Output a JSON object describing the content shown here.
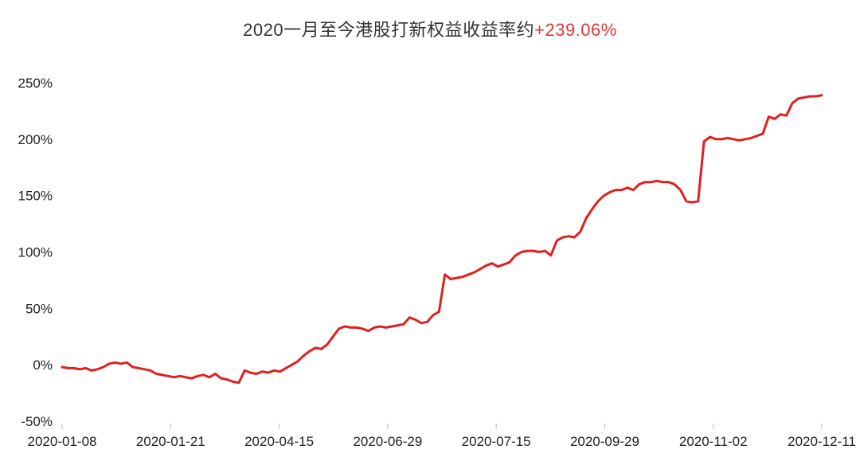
{
  "title": {
    "text": "2020一月至今港股打新权益收益率约",
    "highlight": "+239.06%"
  },
  "colors": {
    "line": "#e01f1f",
    "highlight": "#e23939",
    "title_text": "#333333",
    "axis_text": "#222222",
    "tick": "#bbbbbb"
  },
  "chart_data": {
    "type": "line",
    "title": "2020一月至今港股打新权益收益率约+239.06%",
    "xlabel": "",
    "ylabel": "",
    "ylim": [
      -50,
      250
    ],
    "yticks": [
      -50,
      0,
      50,
      100,
      150,
      200,
      250
    ],
    "ytick_suffix": "%",
    "xticklabels": [
      "2020-01-08",
      "2020-01-21",
      "2020-04-15",
      "2020-06-29",
      "2020-07-15",
      "2020-09-29",
      "2020-11-02",
      "2020-12-11"
    ],
    "grid": false,
    "legend": "none",
    "series_name": "港股打新权益收益率",
    "final_value": 239.06,
    "values": [
      -2,
      -3,
      -3,
      -4,
      -3,
      -5,
      -4,
      -2,
      1,
      2,
      1,
      2,
      -2,
      -3,
      -4,
      -5,
      -8,
      -9,
      -10,
      -11,
      -10,
      -11,
      -12,
      -10,
      -9,
      -11,
      -8,
      -12,
      -13,
      -15,
      -16,
      -5,
      -7,
      -8,
      -6,
      -7,
      -5,
      -6,
      -3,
      0,
      3,
      8,
      12,
      15,
      14,
      18,
      25,
      32,
      34,
      33,
      33,
      32,
      30,
      33,
      34,
      33,
      34,
      35,
      36,
      42,
      40,
      37,
      38,
      44,
      47,
      80,
      76,
      77,
      78,
      80,
      82,
      85,
      88,
      90,
      87,
      89,
      91,
      97,
      100,
      101,
      101,
      100,
      101,
      97,
      110,
      113,
      114,
      113,
      118,
      130,
      138,
      145,
      150,
      153,
      155,
      155,
      157,
      155,
      160,
      162,
      162,
      163,
      162,
      162,
      160,
      155,
      145,
      144,
      145,
      198,
      202,
      200,
      200,
      201,
      200,
      199,
      200,
      201,
      203,
      205,
      220,
      218,
      222,
      221,
      232,
      236,
      237,
      238,
      238,
      239
    ]
  }
}
